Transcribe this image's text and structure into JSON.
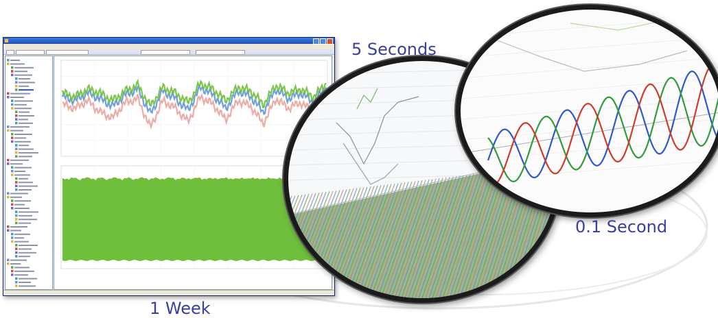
{
  "captions": {
    "five_seconds": "5 Seconds",
    "point_one_second": "0.1 Second",
    "one_week": "1 Week"
  },
  "colors": {
    "caption": "#3a3fa0",
    "trace_blue": "#5f96d8",
    "trace_red": "#e8a39a",
    "trace_green": "#6fbf3c",
    "lens_rim": "#1b1b1b"
  },
  "chart_data": [
    {
      "type": "line",
      "description_visible": "upper plot of the main window: multiple overlapping series",
      "series": [
        {
          "color": "#5f96d8",
          "values": [
            62,
            58,
            66,
            60,
            52,
            64,
            70,
            44,
            68,
            60,
            48,
            72,
            64,
            50,
            68,
            62,
            46,
            70,
            60,
            66,
            56,
            72
          ]
        },
        {
          "color": "#e8a39a",
          "values": [
            54,
            50,
            58,
            46,
            40,
            56,
            60,
            30,
            58,
            50,
            36,
            62,
            54,
            38,
            58,
            52,
            34,
            60,
            50,
            56,
            46,
            62
          ]
        },
        {
          "color": "#6fbf3c",
          "values": [
            66,
            62,
            70,
            66,
            58,
            68,
            74,
            52,
            72,
            66,
            56,
            76,
            70,
            58,
            72,
            68,
            54,
            74,
            66,
            70,
            62,
            76
          ]
        }
      ]
    },
    {
      "type": "area",
      "description_visible": "lower plot of the main window: dense green band",
      "series": [
        {
          "color": "#6fbf3c",
          "values": [
            90,
            89,
            90,
            88,
            90,
            89,
            90,
            89,
            88,
            90,
            89,
            90
          ]
        }
      ]
    },
    {
      "type": "line",
      "description_visible": "0.1 Second magnified view: three phase sine waves",
      "series": [
        {
          "color": "#2d58c8"
        },
        {
          "color": "#2f9b3a"
        },
        {
          "color": "#d03a2a"
        }
      ]
    }
  ]
}
